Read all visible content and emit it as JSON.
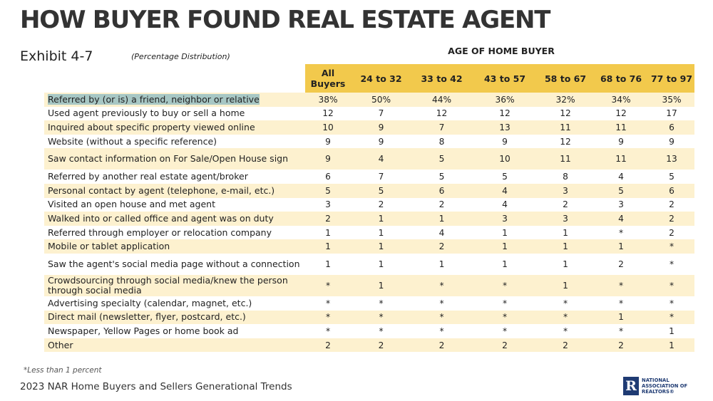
{
  "title": "HOW BUYER FOUND REAL ESTATE AGENT",
  "exhibit": "Exhibit 4-7",
  "subtitle": "(Percentage Distribution)",
  "group_header": "AGE OF HOME BUYER",
  "footnote": "*Less than 1 percent",
  "footer": "2023 NAR Home Buyers and Sellers Generational Trends",
  "logo": {
    "letter": "R",
    "lines": [
      "NATIONAL",
      "ASSOCIATION OF",
      "REALTORS®"
    ]
  },
  "colors": {
    "header_bg": "#f2c94c",
    "stripe_bg": "#fdf1cf",
    "highlight": "#a7c7c4",
    "logo": "#1f3b73"
  },
  "chart_data": {
    "type": "table",
    "title": "HOW BUYER FOUND REAL ESTATE AGENT",
    "columns": [
      "All Buyers",
      "24 to 32",
      "33 to 42",
      "43 to 57",
      "58 to 67",
      "68 to 76",
      "77 to 97"
    ],
    "rows": [
      {
        "label": "Referred by (or is) a friend, neighbor or relative",
        "values": [
          "38%",
          "50%",
          "44%",
          "36%",
          "32%",
          "34%",
          "35%"
        ]
      },
      {
        "label": "Used agent previously to buy or sell a home",
        "values": [
          "12",
          "7",
          "12",
          "12",
          "12",
          "12",
          "17"
        ]
      },
      {
        "label": "Inquired about specific property viewed online",
        "values": [
          "10",
          "9",
          "7",
          "13",
          "11",
          "11",
          "6"
        ]
      },
      {
        "label": "Website (without a specific reference)",
        "values": [
          "9",
          "9",
          "8",
          "9",
          "12",
          "9",
          "9"
        ]
      },
      {
        "label": "Saw contact information on For Sale/Open House sign",
        "values": [
          "9",
          "4",
          "5",
          "10",
          "11",
          "11",
          "13"
        ]
      },
      {
        "label": "Referred by another real estate agent/broker",
        "values": [
          "6",
          "7",
          "5",
          "5",
          "8",
          "4",
          "5"
        ]
      },
      {
        "label": "Personal contact by agent (telephone, e-mail, etc.)",
        "values": [
          "5",
          "5",
          "6",
          "4",
          "3",
          "5",
          "6"
        ]
      },
      {
        "label": "Visited an open house and met agent",
        "values": [
          "3",
          "2",
          "2",
          "4",
          "2",
          "3",
          "2"
        ]
      },
      {
        "label": "Walked into or called office and agent was on duty",
        "values": [
          "2",
          "1",
          "1",
          "3",
          "3",
          "4",
          "2"
        ]
      },
      {
        "label": "Referred through employer or relocation company",
        "values": [
          "1",
          "1",
          "4",
          "1",
          "1",
          "*",
          "2"
        ]
      },
      {
        "label": "Mobile or tablet application",
        "values": [
          "1",
          "1",
          "2",
          "1",
          "1",
          "1",
          "*"
        ]
      },
      {
        "label": "Saw the agent's social media page without a connection",
        "values": [
          "1",
          "1",
          "1",
          "1",
          "1",
          "2",
          "*"
        ]
      },
      {
        "label": "Crowdsourcing through social media/knew the person through social media",
        "values": [
          "*",
          "1",
          "*",
          "*",
          "1",
          "*",
          "*"
        ]
      },
      {
        "label": "Advertising specialty (calendar, magnet, etc.)",
        "values": [
          "*",
          "*",
          "*",
          "*",
          "*",
          "*",
          "*"
        ]
      },
      {
        "label": "Direct mail (newsletter, flyer, postcard, etc.)",
        "values": [
          "*",
          "*",
          "*",
          "*",
          "*",
          "1",
          "*"
        ]
      },
      {
        "label": "Newspaper, Yellow Pages or home book ad",
        "values": [
          "*",
          "*",
          "*",
          "*",
          "*",
          "*",
          "1"
        ]
      },
      {
        "label": "Other",
        "values": [
          "2",
          "2",
          "2",
          "2",
          "2",
          "2",
          "1"
        ]
      }
    ]
  }
}
